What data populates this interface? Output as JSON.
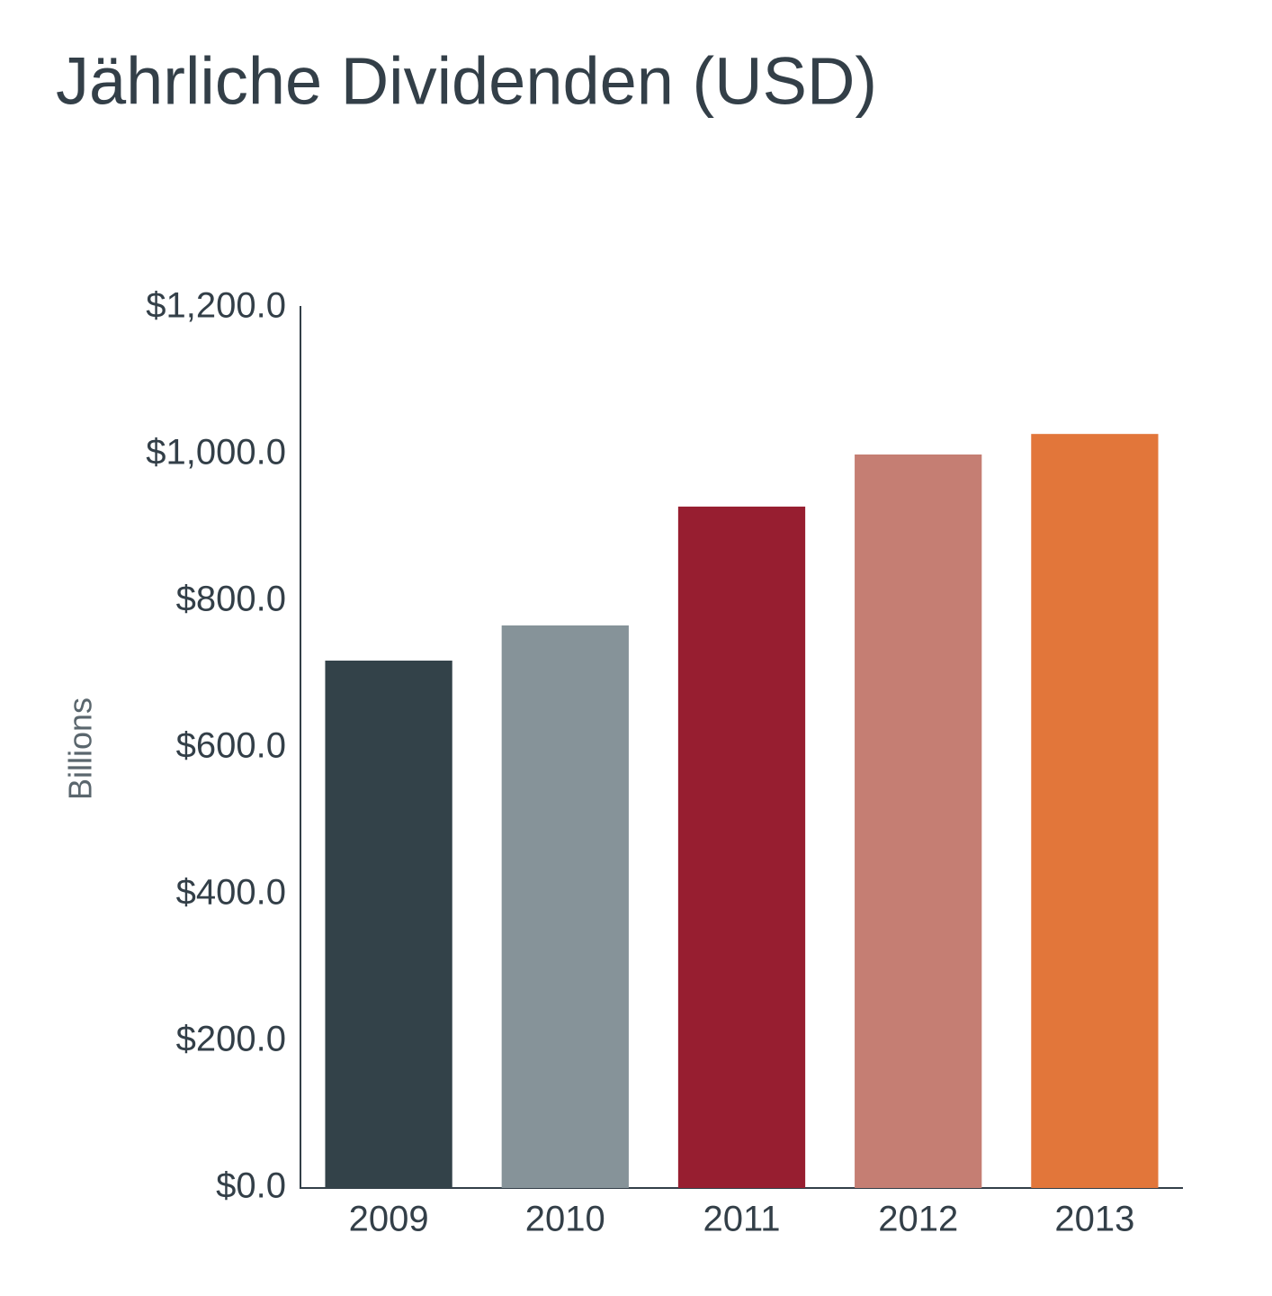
{
  "chart_data": {
    "type": "bar",
    "title": "Jährliche Dividenden (USD)",
    "y_label": "Billions",
    "categories": [
      "2009",
      "2010",
      "2011",
      "2012",
      "2013"
    ],
    "values": [
      719,
      767,
      929,
      1000,
      1028
    ],
    "colors": [
      "#334249",
      "#869399",
      "#971e30",
      "#c57e73",
      "#e2763a"
    ],
    "ylim": [
      0,
      1200
    ],
    "yticks": [
      {
        "value": 0,
        "label": "$0.0"
      },
      {
        "value": 200,
        "label": "$200.0"
      },
      {
        "value": 400,
        "label": "$400.0"
      },
      {
        "value": 600,
        "label": "$600.0"
      },
      {
        "value": 800,
        "label": "$800.0"
      },
      {
        "value": 1000,
        "label": "$1,000.0"
      },
      {
        "value": 1200,
        "label": "$1,200.0"
      }
    ],
    "grid": false
  }
}
